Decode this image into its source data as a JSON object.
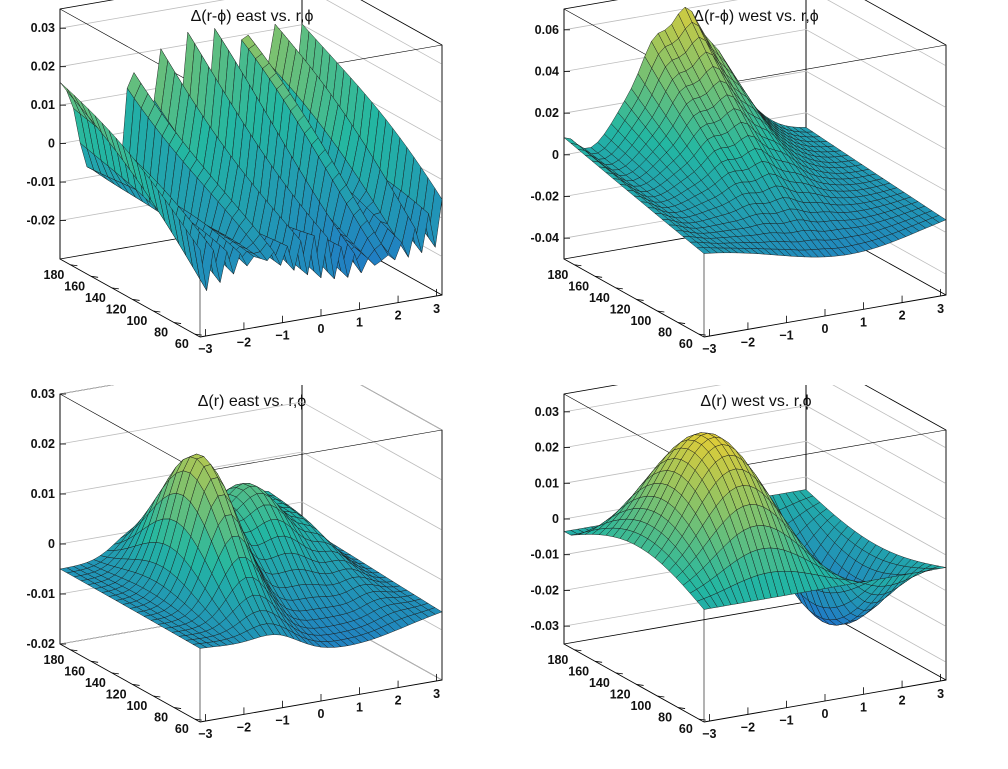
{
  "palette": {
    "low": "#1f5fd6",
    "mid": "#23b7a2",
    "high": "#f5cf2b",
    "mesh": "#1a1a1a",
    "frame": "#000000",
    "grid": "#bdbdbd"
  },
  "chart_data": [
    {
      "type": "surface3d",
      "title": "Δ(r-ϕ) east vs. r,ϕ",
      "x_axis": {
        "ticks": [
          -3,
          -2,
          -1,
          0,
          1,
          2,
          3
        ],
        "lim": [
          -3.14,
          3.14
        ]
      },
      "y_axis": {
        "ticks": [
          60,
          80,
          100,
          120,
          140,
          160,
          180
        ],
        "lim": [
          55,
          190
        ]
      },
      "z_axis": {
        "ticks": [
          "-0.02",
          "-0.01",
          "0",
          "0.01",
          "0.02",
          "0.03"
        ],
        "lim": [
          -0.03,
          0.035
        ]
      },
      "grid": true,
      "pattern": "sector-ridges"
    },
    {
      "type": "surface3d",
      "title": "Δ(r-ϕ) west vs. r,ϕ",
      "x_axis": {
        "ticks": [
          -3,
          -2,
          -1,
          0,
          1,
          2,
          3
        ],
        "lim": [
          -3.14,
          3.14
        ]
      },
      "y_axis": {
        "ticks": [
          60,
          80,
          100,
          120,
          140,
          160,
          180
        ],
        "lim": [
          55,
          190
        ]
      },
      "z_axis": {
        "ticks": [
          "-0.04",
          "-0.02",
          "0",
          "0.02",
          "0.04",
          "0.06"
        ],
        "lim": [
          -0.05,
          0.07
        ]
      },
      "grid": true,
      "pattern": "single-peak"
    },
    {
      "type": "surface3d",
      "title": "Δ(r) east vs. r,ϕ",
      "x_axis": {
        "ticks": [
          -3,
          -2,
          -1,
          0,
          1,
          2,
          3
        ],
        "lim": [
          -3.14,
          3.14
        ]
      },
      "y_axis": {
        "ticks": [
          60,
          80,
          100,
          120,
          140,
          160,
          180
        ],
        "lim": [
          55,
          190
        ]
      },
      "z_axis": {
        "ticks": [
          "-0.02",
          "-0.01",
          "0",
          "0.01",
          "0.02",
          "0.03"
        ],
        "lim": [
          -0.02,
          0.03
        ]
      },
      "grid": true,
      "pattern": "twin-bumps"
    },
    {
      "type": "surface3d",
      "title": "Δ(r) west vs. r,ϕ",
      "x_axis": {
        "ticks": [
          -3,
          -2,
          -1,
          0,
          1,
          2,
          3
        ],
        "lim": [
          -3.14,
          3.14
        ]
      },
      "y_axis": {
        "ticks": [
          60,
          80,
          100,
          120,
          140,
          160,
          180
        ],
        "lim": [
          55,
          190
        ]
      },
      "z_axis": {
        "ticks": [
          "-0.03",
          "-0.02",
          "-0.01",
          "0",
          "0.01",
          "0.02",
          "0.03"
        ],
        "lim": [
          -0.035,
          0.035
        ]
      },
      "grid": true,
      "pattern": "dome-and-trough"
    }
  ]
}
